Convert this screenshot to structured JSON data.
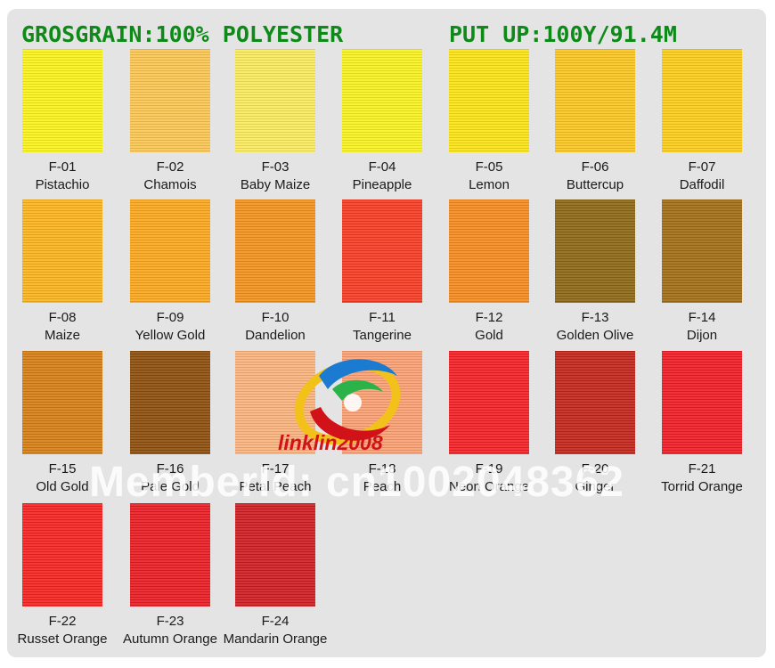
{
  "header": {
    "material": "GROSGRAIN:100% POLYESTER",
    "put_up": "PUT UP:100Y/91.4M"
  },
  "swatches": [
    {
      "code": "F-01",
      "name": "Pistachio",
      "color": "#fbf41a"
    },
    {
      "code": "F-02",
      "name": "Chamois",
      "color": "#fbc651"
    },
    {
      "code": "F-03",
      "name": "Baby Maize",
      "color": "#faea5c"
    },
    {
      "code": "F-04",
      "name": "Pineapple",
      "color": "#f8f21f"
    },
    {
      "code": "F-05",
      "name": "Lemon",
      "color": "#fbe313"
    },
    {
      "code": "F-06",
      "name": "Buttercup",
      "color": "#fbc61f"
    },
    {
      "code": "F-07",
      "name": "Daffodil",
      "color": "#fbcd18"
    },
    {
      "code": "F-08",
      "name": "Maize",
      "color": "#fbb31b"
    },
    {
      "code": "F-09",
      "name": "Yellow Gold",
      "color": "#fba71c"
    },
    {
      "code": "F-10",
      "name": "Dandelion",
      "color": "#f3921c"
    },
    {
      "code": "F-11",
      "name": "Tangerine",
      "color": "#f63b22"
    },
    {
      "code": "F-12",
      "name": "Gold",
      "color": "#f58a1e"
    },
    {
      "code": "F-13",
      "name": "Golden Olive",
      "color": "#8c6614"
    },
    {
      "code": "F-14",
      "name": "Dijon",
      "color": "#a06d14"
    },
    {
      "code": "F-15",
      "name": "Old Gold",
      "color": "#d67e14"
    },
    {
      "code": "F-16",
      "name": "Pale Gold",
      "color": "#8c4e0c"
    },
    {
      "code": "F-17",
      "name": "Petal Peach",
      "color": "#f9b27d"
    },
    {
      "code": "F-18",
      "name": "Peach",
      "color": "#fa9f73"
    },
    {
      "code": "F-19",
      "name": "Neon Orange",
      "color": "#f42025"
    },
    {
      "code": "F-20",
      "name": "Ginger",
      "color": "#c32418"
    },
    {
      "code": "F-21",
      "name": "Torrid Orange",
      "color": "#f11c26"
    },
    {
      "code": "F-22",
      "name": "Russet Orange",
      "color": "#f5231f"
    },
    {
      "code": "F-23",
      "name": "Autumn Orange",
      "color": "#eb1c24"
    },
    {
      "code": "F-24",
      "name": "Mandarin Orange",
      "color": "#cf1d21"
    }
  ],
  "watermark": {
    "member_text": "MemberId: cn1002048362",
    "logo_text": "linklin2008"
  }
}
